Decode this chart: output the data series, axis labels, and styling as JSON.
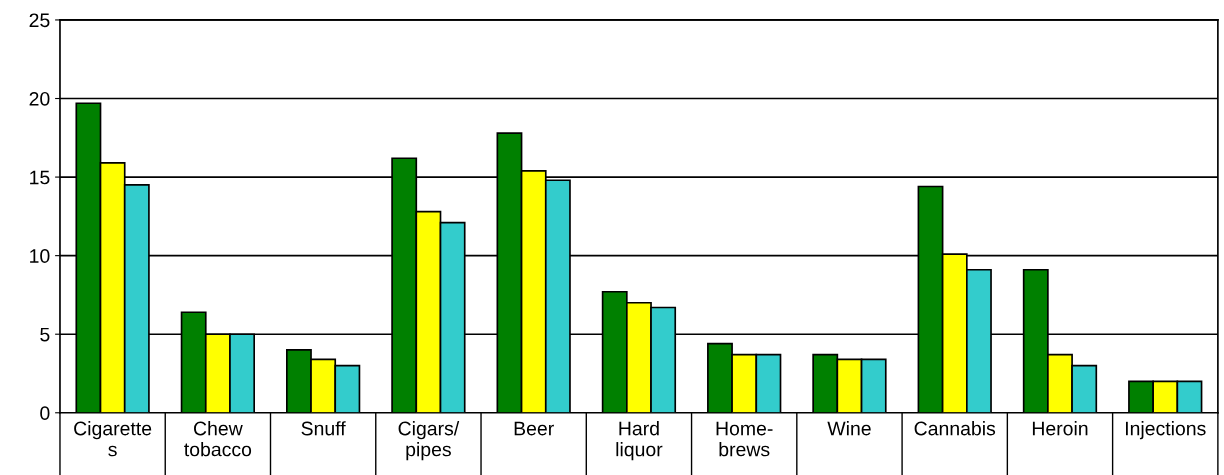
{
  "chart_data": {
    "type": "bar",
    "categories": [
      "Cigarette\ns",
      "Chew\ntobacco",
      "Snuff",
      "Cigars/\npipes",
      "Beer",
      "Hard\nliquor",
      "Home-\nbrews",
      "Wine",
      "Cannabis",
      "Heroin",
      "Injections"
    ],
    "series": [
      {
        "color": "#008000",
        "values": [
          19.7,
          6.4,
          4.0,
          16.2,
          17.8,
          7.7,
          4.4,
          3.7,
          14.4,
          9.1,
          2.0
        ]
      },
      {
        "color": "#ffff00",
        "values": [
          15.9,
          5.0,
          3.4,
          12.8,
          15.4,
          7.0,
          3.7,
          3.4,
          10.1,
          3.7,
          2.0
        ]
      },
      {
        "color": "#33cccc",
        "values": [
          14.5,
          5.0,
          3.0,
          12.1,
          14.8,
          6.7,
          3.7,
          3.4,
          9.1,
          3.0,
          2.0
        ]
      }
    ],
    "ylim": [
      0,
      25
    ],
    "yticks": [
      0,
      5,
      10,
      15,
      20,
      25
    ],
    "grid": "y",
    "legend": false
  }
}
